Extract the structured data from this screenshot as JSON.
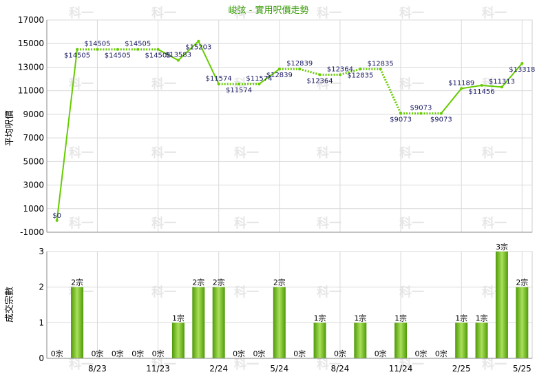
{
  "chart_data": [
    {
      "type": "line",
      "title": "峻弦 - 實用呎價走勢",
      "ylabel": "平均呎價",
      "ylim": [
        -1000,
        17000
      ],
      "yticks": [
        -1000,
        1000,
        3000,
        5000,
        7000,
        9000,
        11000,
        13000,
        15000,
        17000
      ],
      "grid": true,
      "line_color": "#66cc00",
      "values": [
        0,
        14505,
        14505,
        14505,
        14505,
        14505,
        13583,
        15203,
        11574,
        11574,
        11574,
        12839,
        12839,
        12364,
        12364,
        12835,
        12835,
        9073,
        9073,
        9073,
        11189,
        11456,
        11313,
        13318
      ],
      "labels": [
        "$0",
        "$14505",
        "$14505",
        "$14505",
        "$14505",
        "$14505",
        "$13583",
        "$15203",
        "$11574",
        "$11574",
        "$11574",
        "$12839",
        "$12839",
        "$12364",
        "$12364",
        "$12835",
        "$12835",
        "$9073",
        "$9073",
        "$9073",
        "$11189",
        "$11456",
        "$11313",
        "$13318"
      ],
      "interpolated": [
        false,
        false,
        true,
        true,
        true,
        false,
        false,
        false,
        false,
        true,
        false,
        false,
        true,
        false,
        true,
        false,
        true,
        false,
        true,
        false,
        false,
        false,
        false,
        false
      ]
    },
    {
      "type": "bar",
      "ylabel": "成交宗數",
      "ylim": [
        0,
        3
      ],
      "yticks": [
        0,
        1,
        2,
        3
      ],
      "grid": true,
      "bar_color": "#66bb11",
      "values": [
        0,
        2,
        0,
        0,
        0,
        0,
        1,
        2,
        2,
        0,
        0,
        2,
        0,
        1,
        0,
        1,
        0,
        1,
        0,
        0,
        1,
        1,
        3,
        2
      ],
      "labels": [
        "0宗",
        "2宗",
        "0宗",
        "0宗",
        "0宗",
        "0宗",
        "1宗",
        "2宗",
        "2宗",
        "0宗",
        "0宗",
        "2宗",
        "0宗",
        "1宗",
        "0宗",
        "1宗",
        "0宗",
        "1宗",
        "0宗",
        "0宗",
        "1宗",
        "1宗",
        "3宗",
        "2宗"
      ],
      "xtick_labels": [
        "8/23",
        "11/23",
        "2/24",
        "5/24",
        "8/24",
        "11/24",
        "2/25",
        "5/25"
      ],
      "xtick_index": [
        2,
        5,
        8,
        11,
        14,
        17,
        20,
        23
      ]
    }
  ],
  "watermark": "科一"
}
